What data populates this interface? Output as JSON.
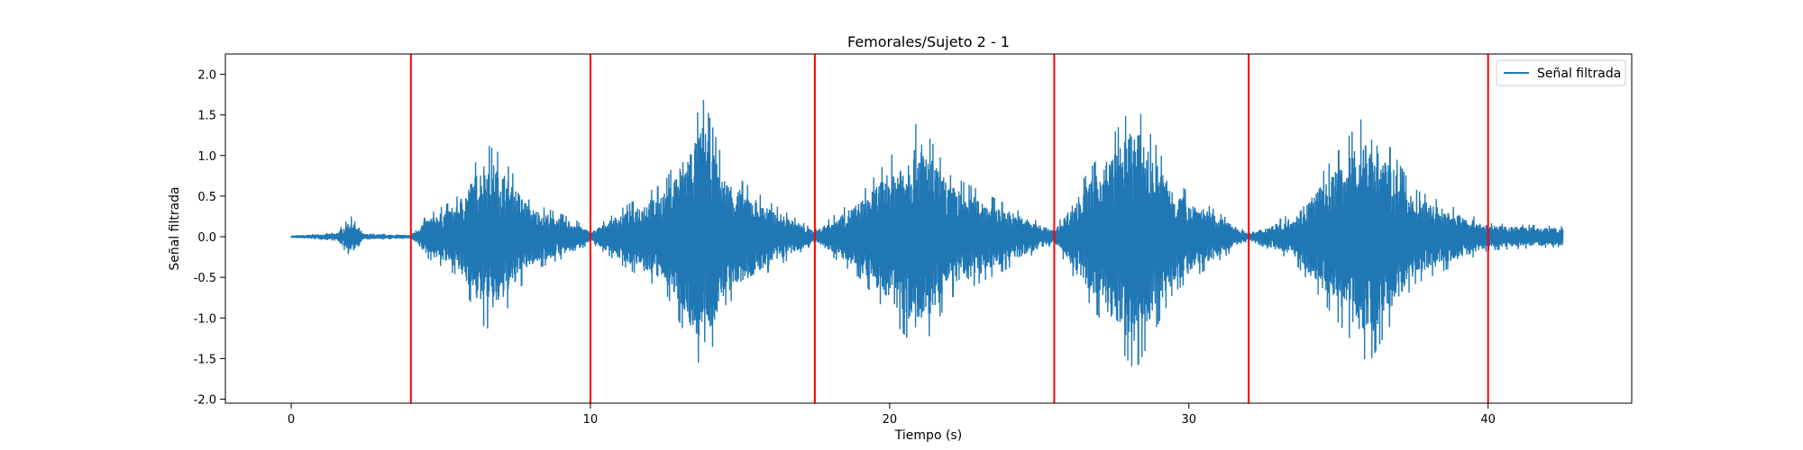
{
  "chart_data": {
    "type": "line",
    "title": "Femorales/Sujeto 2 - 1",
    "xlabel": "Tiempo (s)",
    "ylabel": "Señal filtrada",
    "xlim": [
      -2.2,
      44.8
    ],
    "ylim": [
      -2.05,
      2.25
    ],
    "xticks": [
      0,
      10,
      20,
      30,
      40
    ],
    "yticks": [
      -2.0,
      -1.5,
      -1.0,
      -0.5,
      0.0,
      0.5,
      1.0,
      1.5,
      2.0
    ],
    "grid": false,
    "legend": {
      "placement": "top-right",
      "entries": [
        "Señal filtrada"
      ]
    },
    "series": [
      {
        "name": "Señal filtrada",
        "color": "#1f77b4",
        "envelope": [
          {
            "t": 0.0,
            "amp": 0.02
          },
          {
            "t": 1.5,
            "amp": 0.06
          },
          {
            "t": 2.0,
            "amp": 0.3
          },
          {
            "t": 2.4,
            "amp": 0.05
          },
          {
            "t": 4.0,
            "amp": 0.03
          },
          {
            "t": 4.5,
            "amp": 0.3
          },
          {
            "t": 5.5,
            "amp": 0.55
          },
          {
            "t": 6.5,
            "amp": 1.35
          },
          {
            "t": 7.0,
            "amp": 1.2
          },
          {
            "t": 8.0,
            "amp": 0.5
          },
          {
            "t": 9.5,
            "amp": 0.25
          },
          {
            "t": 10.0,
            "amp": 0.08
          },
          {
            "t": 11.0,
            "amp": 0.4
          },
          {
            "t": 12.5,
            "amp": 0.8
          },
          {
            "t": 13.8,
            "amp": 2.0
          },
          {
            "t": 14.5,
            "amp": 1.0
          },
          {
            "t": 16.0,
            "amp": 0.5
          },
          {
            "t": 17.5,
            "amp": 0.1
          },
          {
            "t": 19.0,
            "amp": 0.6
          },
          {
            "t": 21.0,
            "amp": 1.7
          },
          {
            "t": 22.0,
            "amp": 0.9
          },
          {
            "t": 24.0,
            "amp": 0.45
          },
          {
            "t": 25.5,
            "amp": 0.1
          },
          {
            "t": 26.5,
            "amp": 0.85
          },
          {
            "t": 28.2,
            "amp": 1.95
          },
          {
            "t": 29.5,
            "amp": 0.8
          },
          {
            "t": 31.5,
            "amp": 0.2
          },
          {
            "t": 32.0,
            "amp": 0.05
          },
          {
            "t": 33.5,
            "amp": 0.35
          },
          {
            "t": 36.0,
            "amp": 1.85
          },
          {
            "t": 37.5,
            "amp": 0.7
          },
          {
            "t": 40.0,
            "amp": 0.2
          },
          {
            "t": 42.5,
            "amp": 0.15
          }
        ]
      }
    ],
    "vlines": {
      "color": "#ff0000",
      "x": [
        4.0,
        10.0,
        17.5,
        25.5,
        32.0,
        40.0
      ]
    }
  }
}
